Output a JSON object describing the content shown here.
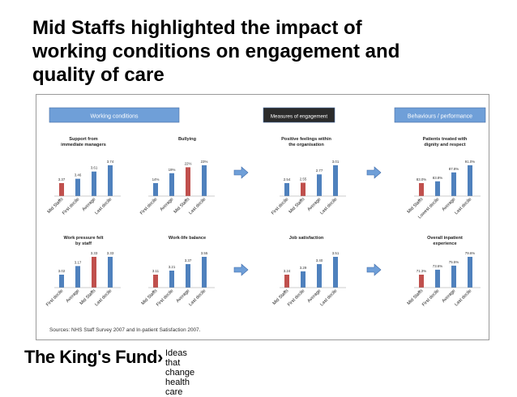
{
  "slide": {
    "title": "Mid Staffs highlighted the impact of\nworking conditions on engagement and\nquality of care"
  },
  "figure": {
    "section_headers": [
      "Working conditions",
      "Measures of engagement",
      "Behaviours / performance"
    ],
    "source_note": "Sources: NHS Staff Survey 2007 and In-patient Satisfaction 2007.",
    "colors": {
      "highlight": "#c0504d",
      "bar": "#4f81bd",
      "header_fill": "#6f9fd8",
      "dark_header_fill": "#2b2b2b"
    }
  },
  "chart_data": [
    {
      "type": "bar",
      "title": "Support from immediate managers",
      "categories": [
        "Mid Staffs",
        "First decile",
        "Average",
        "Last decile"
      ],
      "values": [
        3.37,
        3.46,
        3.61,
        3.74
      ],
      "labels": [
        "3.37",
        "3.46",
        "3.61",
        "3.74"
      ],
      "highlight": 0
    },
    {
      "type": "bar",
      "title": "Bullying",
      "categories": [
        "First decile",
        "Average",
        "Mid Staffs",
        "Last decile"
      ],
      "values": [
        14,
        19,
        22,
        23
      ],
      "labels": [
        "14%",
        "19%",
        "22%",
        "23%"
      ],
      "highlight": 2
    },
    {
      "type": "bar",
      "title": "Positive feelings within the organisation",
      "categories": [
        "First decile",
        "Mid Staffs",
        "Average",
        "Last decile"
      ],
      "values": [
        2.54,
        2.55,
        2.77,
        3.01
      ],
      "labels": [
        "2.54",
        "2.55",
        "2.77",
        "3.01"
      ],
      "highlight": 1
    },
    {
      "type": "bar",
      "title": "Patients treated with dignity and respect",
      "categories": [
        "Mid Staffs",
        "Lowest decile",
        "Average",
        "Last decile"
      ],
      "values": [
        83.0,
        83.8,
        87.8,
        91.0
      ],
      "labels": [
        "83.0%",
        "83.8%",
        "87.8%",
        "91.0%"
      ],
      "highlight": 0
    },
    {
      "type": "bar",
      "title": "Work pressure felt by staff",
      "categories": [
        "First decile",
        "Average",
        "Mid Staffs",
        "Last decile"
      ],
      "values": [
        3.02,
        3.17,
        3.33,
        3.33
      ],
      "labels": [
        "3.02",
        "3.17",
        "3.33",
        "3.33"
      ],
      "highlight": 2
    },
    {
      "type": "bar",
      "title": "Work-life balance",
      "categories": [
        "Mid Staffs",
        "First decile",
        "Average",
        "Last decile"
      ],
      "values": [
        3.11,
        3.21,
        3.37,
        3.55
      ],
      "labels": [
        "3.11",
        "3.21",
        "3.37",
        "3.55"
      ],
      "highlight": 0
    },
    {
      "type": "bar",
      "title": "Job satisfaction",
      "categories": [
        "Mid Staffs",
        "First decile",
        "Average",
        "Last decile"
      ],
      "values": [
        3.24,
        3.29,
        3.4,
        3.51
      ],
      "labels": [
        "3.24",
        "3.29",
        "3.40",
        "3.51"
      ],
      "highlight": 0
    },
    {
      "type": "bar",
      "title": "Overall inpatient experience",
      "categories": [
        "Mid Staffs",
        "First decile",
        "Average",
        "Last decile"
      ],
      "values": [
        71.3,
        73.6,
        75.5,
        79.6
      ],
      "labels": [
        "71.3%",
        "73.6%",
        "75.5%",
        "79.6%"
      ],
      "highlight": 0
    }
  ],
  "footer": {
    "brand": "The King's Fund",
    "brand_arrow": "›",
    "tagline": "Ideas that change\nhealth care"
  }
}
